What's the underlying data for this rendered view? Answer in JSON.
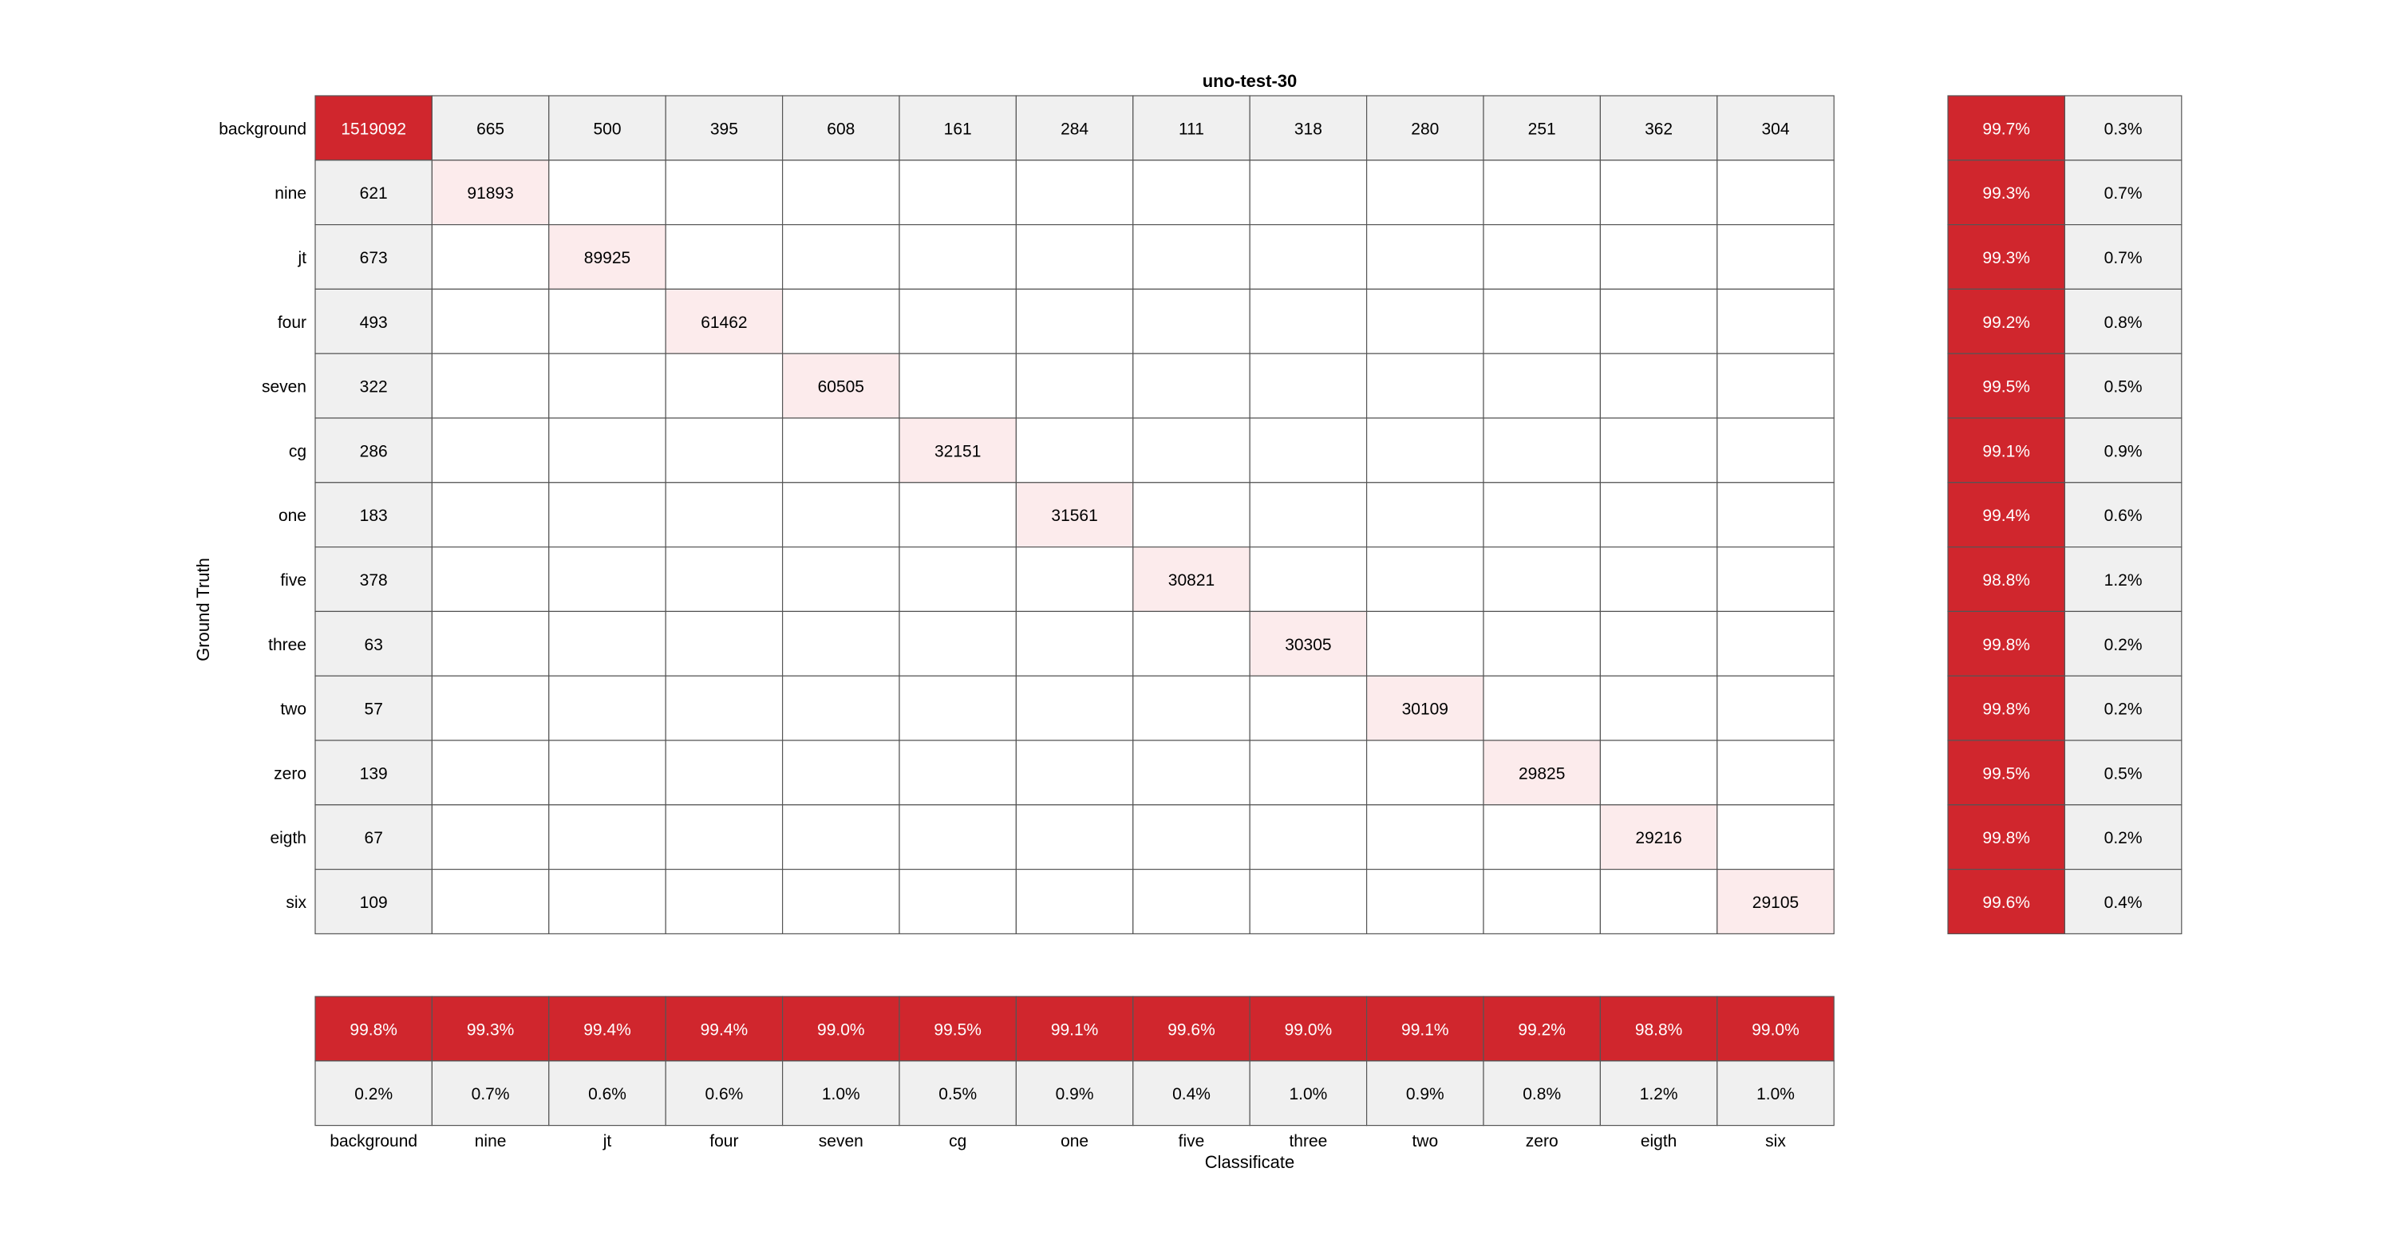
{
  "chart_data": {
    "type": "heatmap",
    "title": "uno-test-30",
    "xlabel": "Classificate",
    "ylabel": "Ground Truth",
    "classes": [
      "background",
      "nine",
      "jt",
      "four",
      "seven",
      "cg",
      "one",
      "five",
      "three",
      "two",
      "zero",
      "eigth",
      "six"
    ],
    "matrix": [
      [
        1519092,
        665,
        500,
        395,
        608,
        161,
        284,
        111,
        318,
        280,
        251,
        362,
        304
      ],
      [
        621,
        91893,
        null,
        null,
        null,
        null,
        null,
        null,
        null,
        null,
        null,
        null,
        null
      ],
      [
        673,
        null,
        89925,
        null,
        null,
        null,
        null,
        null,
        null,
        null,
        null,
        null,
        null
      ],
      [
        493,
        null,
        null,
        61462,
        null,
        null,
        null,
        null,
        null,
        null,
        null,
        null,
        null
      ],
      [
        322,
        null,
        null,
        null,
        60505,
        null,
        null,
        null,
        null,
        null,
        null,
        null,
        null
      ],
      [
        286,
        null,
        null,
        null,
        null,
        32151,
        null,
        null,
        null,
        null,
        null,
        null,
        null
      ],
      [
        183,
        null,
        null,
        null,
        null,
        null,
        31561,
        null,
        null,
        null,
        null,
        null,
        null
      ],
      [
        378,
        null,
        null,
        null,
        null,
        null,
        null,
        30821,
        null,
        null,
        null,
        null,
        null
      ],
      [
        63,
        null,
        null,
        null,
        null,
        null,
        null,
        null,
        30305,
        null,
        null,
        null,
        null
      ],
      [
        57,
        null,
        null,
        null,
        null,
        null,
        null,
        null,
        null,
        30109,
        null,
        null,
        null
      ],
      [
        139,
        null,
        null,
        null,
        null,
        null,
        null,
        null,
        null,
        null,
        29825,
        null,
        null
      ],
      [
        67,
        null,
        null,
        null,
        null,
        null,
        null,
        null,
        null,
        null,
        null,
        29216,
        null
      ],
      [
        109,
        null,
        null,
        null,
        null,
        null,
        null,
        null,
        null,
        null,
        null,
        null,
        29105
      ]
    ],
    "row_summary": {
      "correct": [
        "99.7%",
        "99.3%",
        "99.3%",
        "99.2%",
        "99.5%",
        "99.1%",
        "99.4%",
        "98.8%",
        "99.8%",
        "99.8%",
        "99.5%",
        "99.8%",
        "99.6%"
      ],
      "incorrect": [
        "0.3%",
        "0.7%",
        "0.7%",
        "0.8%",
        "0.5%",
        "0.9%",
        "0.6%",
        "1.2%",
        "0.2%",
        "0.2%",
        "0.5%",
        "0.2%",
        "0.4%"
      ]
    },
    "column_summary": {
      "correct": [
        "99.8%",
        "99.3%",
        "99.4%",
        "99.4%",
        "99.0%",
        "99.5%",
        "99.1%",
        "99.6%",
        "99.0%",
        "99.1%",
        "99.2%",
        "98.8%",
        "99.0%"
      ],
      "incorrect": [
        "0.2%",
        "0.7%",
        "0.6%",
        "0.6%",
        "1.0%",
        "0.5%",
        "0.9%",
        "0.4%",
        "1.0%",
        "0.9%",
        "0.8%",
        "1.2%",
        "1.0%"
      ]
    },
    "colors": {
      "strong": "#d0262d",
      "diagonal_light": "#fcebec",
      "offdiag": "#f0f0f0",
      "empty": "#ffffff",
      "grid": "#555555",
      "text_dark": "#000000",
      "text_light": "#ffffff"
    }
  }
}
